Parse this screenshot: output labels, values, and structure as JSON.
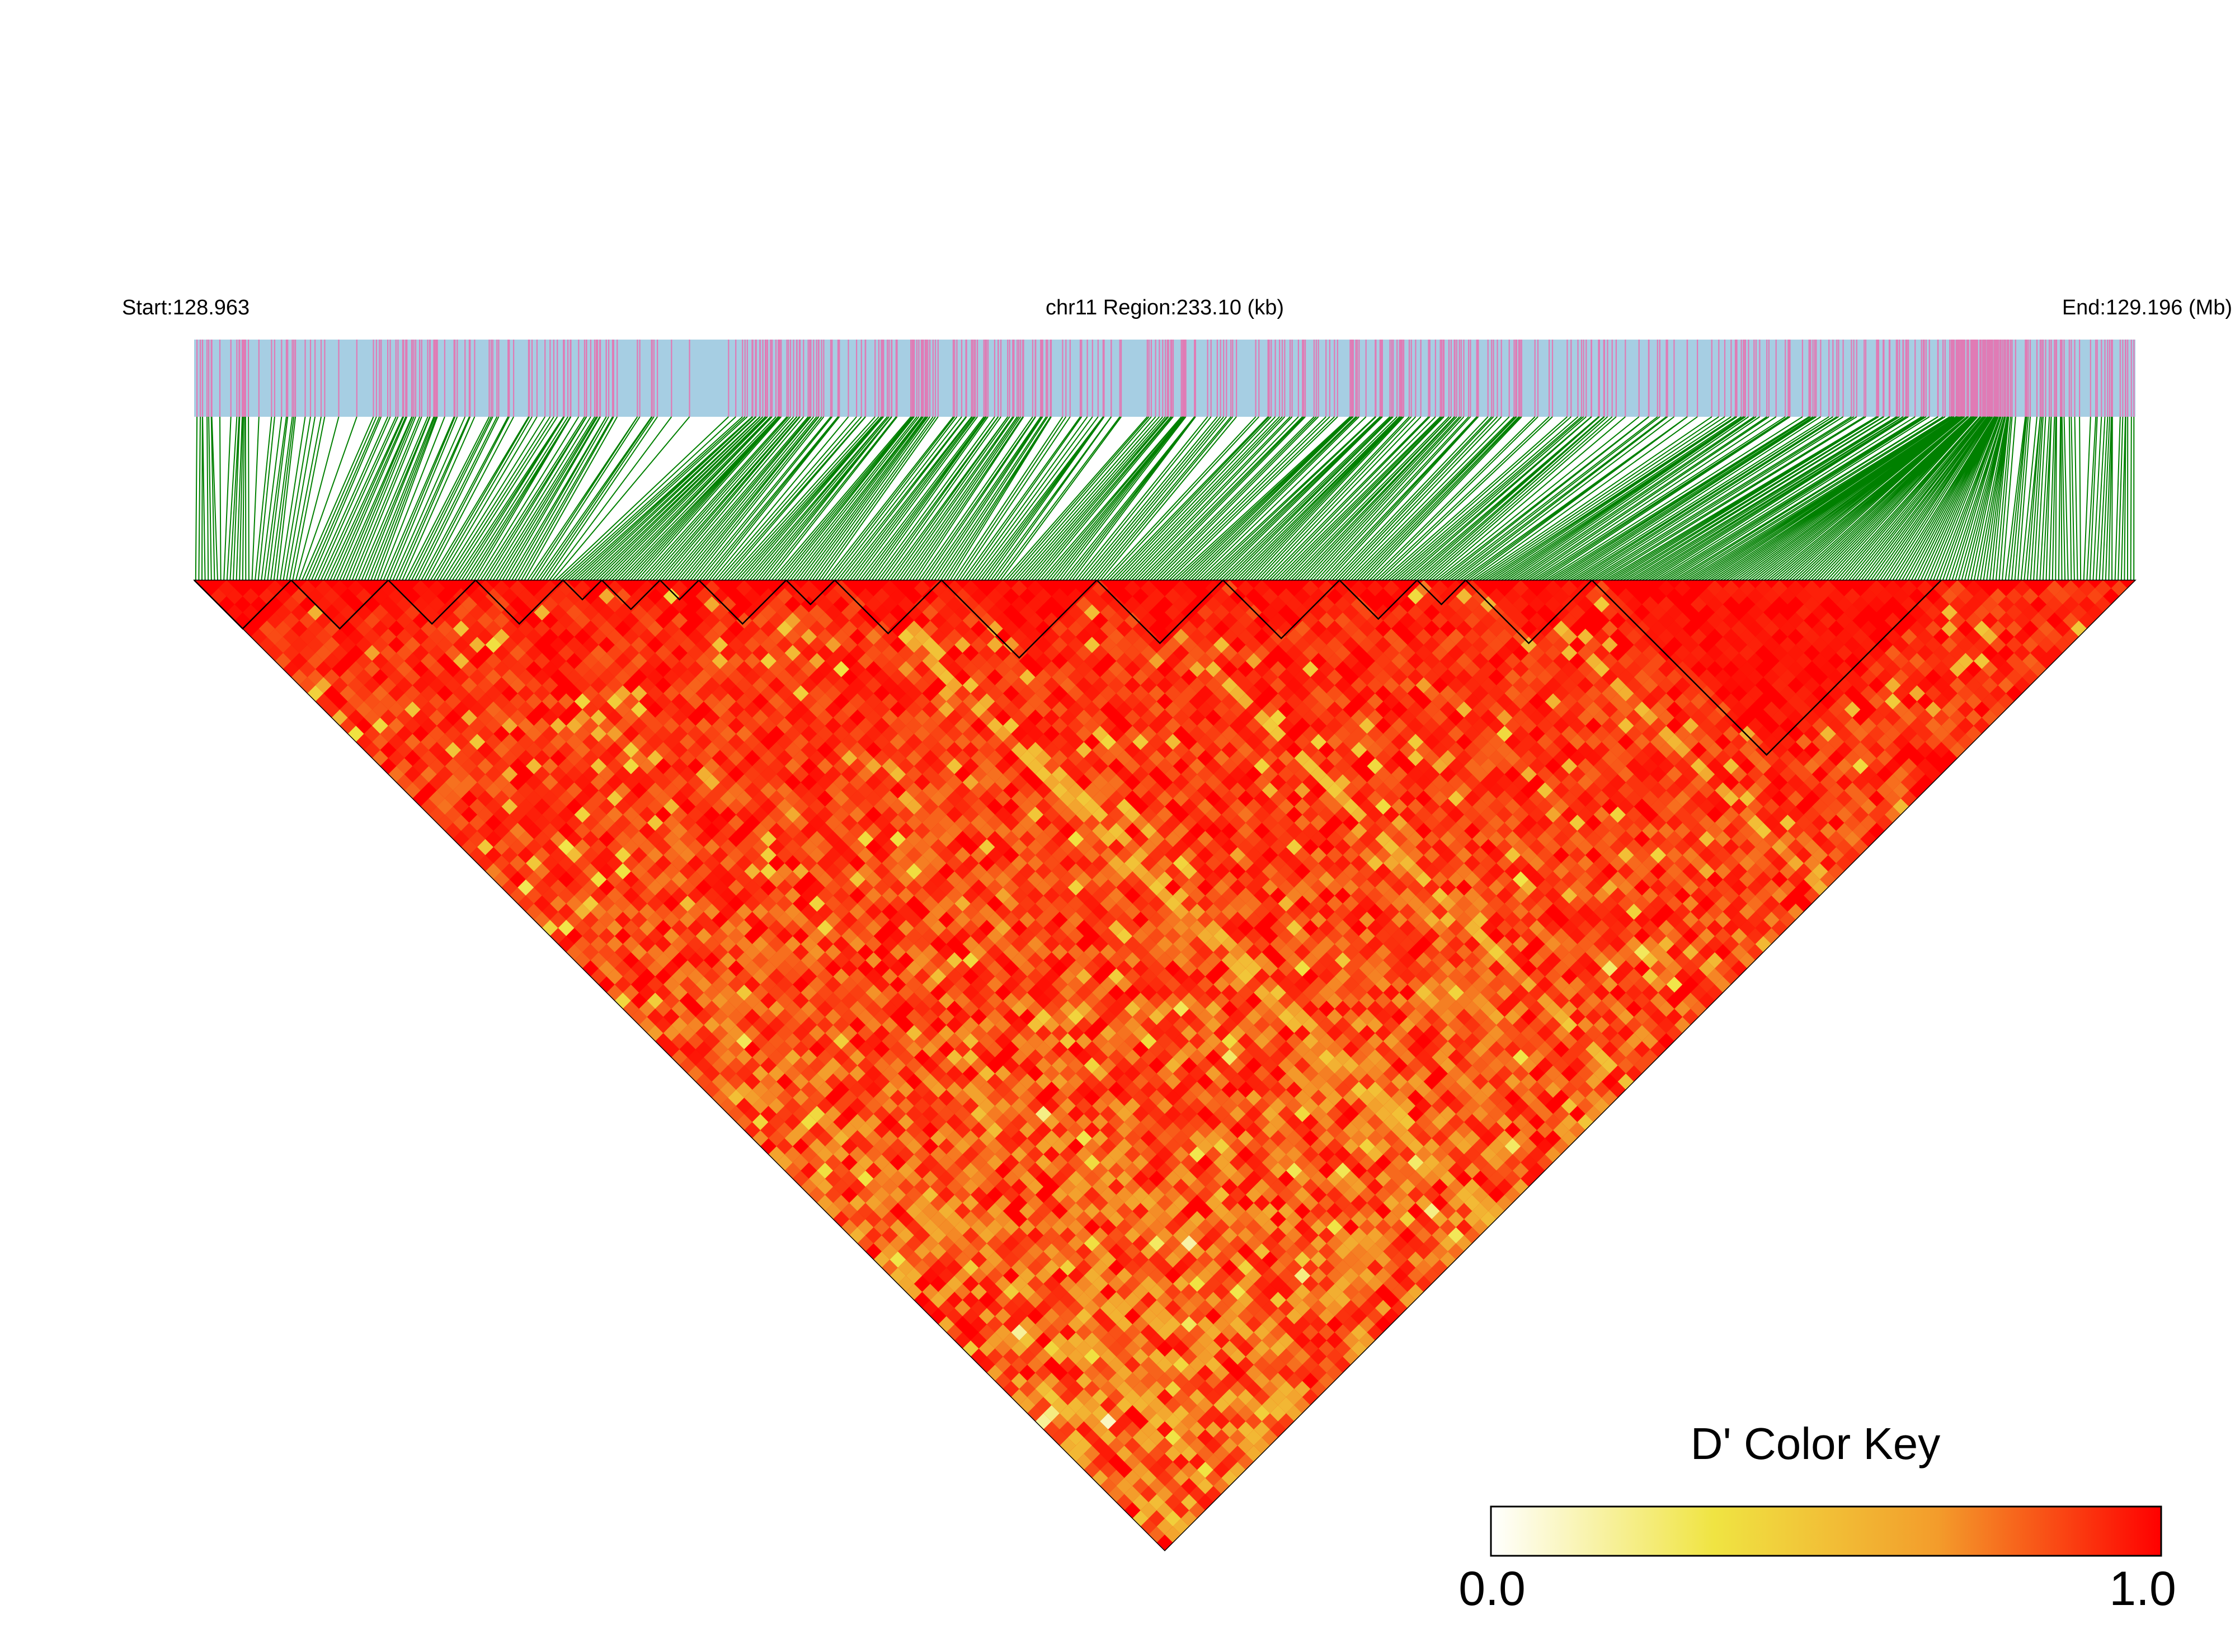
{
  "chart_data": {
    "type": "heatmap",
    "description_kind": "linkage disequilibrium triangle",
    "chromosome": "chr11",
    "region_start_mb": 128.963,
    "region_end_mb": 129.196,
    "region_length_kb": 233.1,
    "labels": {
      "start": "Start:128.963",
      "center": "chr11 Region:233.10 (kb)",
      "end": "End:129.196 (Mb)"
    },
    "metric": "D'",
    "value_range": [
      0.0,
      1.0
    ],
    "color_key": {
      "title": "D' Color Key",
      "min_label": "0.0",
      "max_label": "1.0",
      "stops": [
        "#ffffff",
        "#f0e442",
        "#f39c2b",
        "#ff0000"
      ]
    },
    "colors": {
      "snp_bar_background": "#a6cee3",
      "snp_tick": "#e07bb5",
      "connector_lines": "#008000",
      "ld_high": "#ff0000",
      "block_outline": "#000000"
    },
    "haplotype_blocks": [
      {
        "from_fraction": 0.0,
        "to_fraction": 0.05
      },
      {
        "from_fraction": 0.05,
        "to_fraction": 0.1
      },
      {
        "from_fraction": 0.1,
        "to_fraction": 0.145
      },
      {
        "from_fraction": 0.145,
        "to_fraction": 0.19
      },
      {
        "from_fraction": 0.19,
        "to_fraction": 0.21
      },
      {
        "from_fraction": 0.21,
        "to_fraction": 0.24
      },
      {
        "from_fraction": 0.24,
        "to_fraction": 0.26
      },
      {
        "from_fraction": 0.26,
        "to_fraction": 0.305
      },
      {
        "from_fraction": 0.305,
        "to_fraction": 0.33
      },
      {
        "from_fraction": 0.33,
        "to_fraction": 0.385
      },
      {
        "from_fraction": 0.385,
        "to_fraction": 0.465
      },
      {
        "from_fraction": 0.465,
        "to_fraction": 0.53
      },
      {
        "from_fraction": 0.53,
        "to_fraction": 0.59
      },
      {
        "from_fraction": 0.59,
        "to_fraction": 0.63
      },
      {
        "from_fraction": 0.63,
        "to_fraction": 0.655
      },
      {
        "from_fraction": 0.655,
        "to_fraction": 0.72
      },
      {
        "from_fraction": 0.72,
        "to_fraction": 0.9
      }
    ]
  }
}
